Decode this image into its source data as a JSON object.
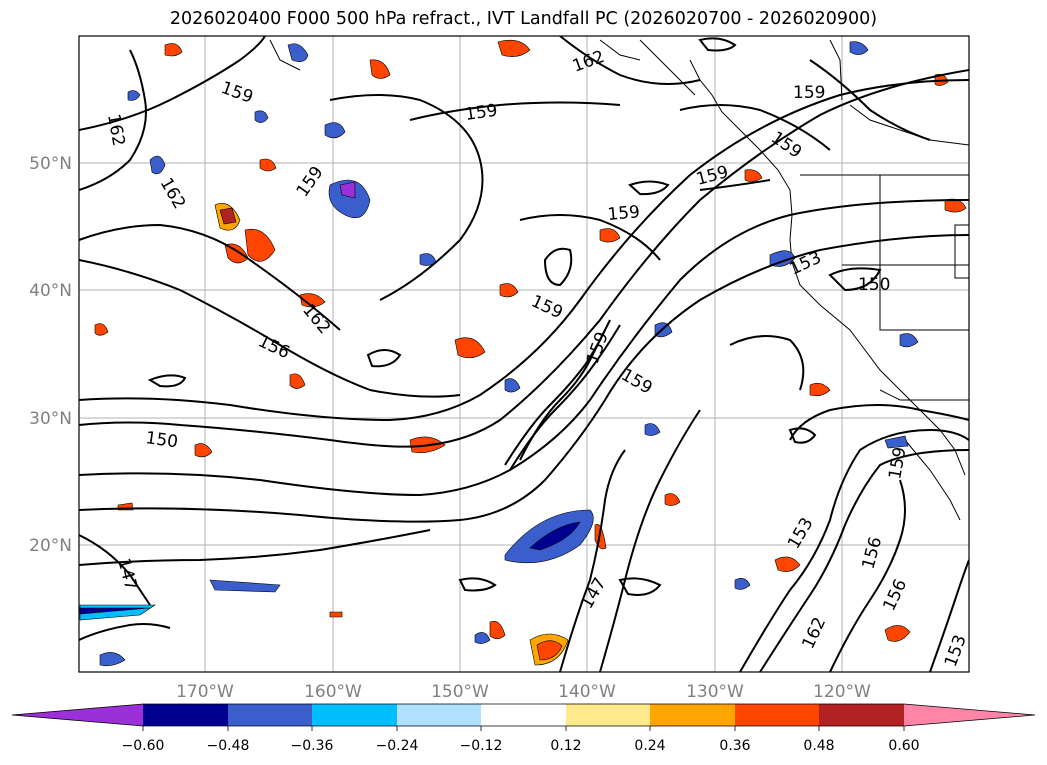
{
  "title": "2026020400 F000 500 hPa refract., IVT Landfall PC (2026020700 - 2026020900)",
  "lon_labels": [
    "170°W",
    "160°W",
    "150°W",
    "140°W",
    "130°W",
    "120°W"
  ],
  "lat_labels": [
    "50°N",
    "40°N",
    "30°N",
    "20°N"
  ],
  "contour_labels": [
    {
      "text": "159"
    },
    {
      "text": "162"
    },
    {
      "text": "162"
    },
    {
      "text": "159"
    },
    {
      "text": "162"
    },
    {
      "text": "159"
    },
    {
      "text": "159"
    },
    {
      "text": "159"
    },
    {
      "text": "159"
    },
    {
      "text": "159"
    },
    {
      "text": "159"
    },
    {
      "text": "153"
    },
    {
      "text": "150"
    },
    {
      "text": "162"
    },
    {
      "text": "156"
    },
    {
      "text": "159"
    },
    {
      "text": "159"
    },
    {
      "text": "150"
    },
    {
      "text": "147"
    },
    {
      "text": "147"
    },
    {
      "text": "153"
    },
    {
      "text": "156"
    },
    {
      "text": "156"
    },
    {
      "text": "162"
    },
    {
      "text": "153"
    },
    {
      "text": "159"
    }
  ],
  "colorbar": {
    "ticks": [
      "−0.60",
      "−0.48",
      "−0.36",
      "−0.24",
      "−0.12",
      "0.12",
      "0.24",
      "0.36",
      "0.48",
      "0.60"
    ],
    "colors": [
      "#9b30d8",
      "#000090",
      "#3a5fcd",
      "#00bfff",
      "#b0e2ff",
      "#ffffff",
      "#ffe98a",
      "#ffa500",
      "#ff4500",
      "#b22222",
      "#ff85a8"
    ]
  }
}
